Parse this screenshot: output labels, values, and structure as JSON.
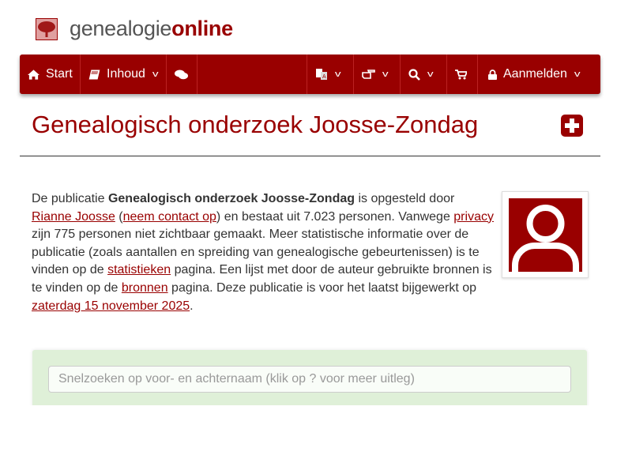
{
  "logo": {
    "part1": "genealogie",
    "part2": "online"
  },
  "nav": {
    "start": "Start",
    "inhoud": "Inhoud",
    "aanmelden": "Aanmelden",
    "icons": [
      "home-icon",
      "book-icon",
      "chat-icon",
      "translate-icon",
      "hand-pointer-icon",
      "search-icon",
      "cart-icon",
      "lock-icon"
    ]
  },
  "page": {
    "title": "Genealogisch onderzoek Joosse-Zondag"
  },
  "intro": {
    "t1": "De publicatie ",
    "b1": "Genealogisch onderzoek Joosse-Zondag",
    "t2": " is opgesteld door ",
    "author": "Rianne Joosse",
    "t3": " (",
    "contact": "neem contact op",
    "t4": ") en bestaat uit 7.023 personen. Vanwege ",
    "privacy": "privacy",
    "t5": " zijn 775 personen niet zichtbaar gemaakt. Meer statistische informatie over de publicatie (zoals aantallen en spreiding van genealogische gebeurtenissen) is te vinden op de ",
    "stats": "statistieken",
    "t6": " pagina. Een lijst met door de auteur gebruikte bronnen is te vinden op de ",
    "sources": "bronnen",
    "t7": " pagina. Deze publicatie is voor het laatst bijgewerkt op ",
    "date": "zaterdag 15 november 2025",
    "t8": "."
  },
  "search": {
    "placeholder": "Snelzoeken op voor- en achternaam (klik op ? voor meer uitleg)"
  },
  "colors": {
    "brand": "#990000",
    "panel": "#dff0d8"
  }
}
